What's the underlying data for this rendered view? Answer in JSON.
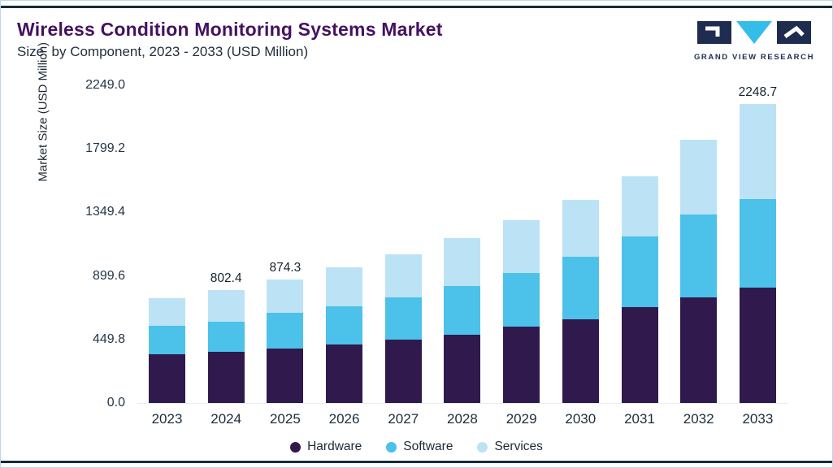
{
  "header": {
    "title": "Wireless Condition Monitoring Systems Market",
    "subtitle": "Size, by Component, 2023 - 2033 (USD Million)",
    "logo_text": "GRAND VIEW RESEARCH"
  },
  "colors": {
    "hardware": "#301a4d",
    "software": "#4cc1e9",
    "services": "#bce3f5",
    "title_purple": "#44125e",
    "rule_navy": "#15293d",
    "logo_navy": "#1e2d4f",
    "logo_cyan": "#35bdea"
  },
  "chart_data": {
    "type": "bar",
    "stacked": true,
    "title": "Wireless Condition Monitoring Systems Market Size, by Component, 2023 - 2033 (USD Million)",
    "xlabel": "",
    "ylabel": "Market Size (USD Million)",
    "ylim": [
      0,
      2249
    ],
    "grid": false,
    "legend_position": "bottom",
    "categories": [
      "2023",
      "2024",
      "2025",
      "2026",
      "2027",
      "2028",
      "2029",
      "2030",
      "2031",
      "2032",
      "2033"
    ],
    "series": [
      {
        "name": "Hardware",
        "color": "#301a4d",
        "values": [
          345,
          362,
          385,
          412,
          447,
          486,
          538,
          595,
          681,
          750,
          870
        ]
      },
      {
        "name": "Software",
        "color": "#4cc1e9",
        "values": [
          204,
          216,
          256,
          275,
          303,
          344,
          383,
          441,
          498,
          583,
          664
        ]
      },
      {
        "name": "Services",
        "color": "#bce3f5",
        "values": [
          191,
          224.4,
          233.3,
          271,
          305,
          336,
          372,
          402,
          425,
          533,
          714.7
        ]
      }
    ],
    "totals": [
      740,
      802.4,
      874.3,
      958,
      1055,
      1166,
      1293,
      1438,
      1604,
      1866,
      2248.7
    ],
    "bar_labels": [
      "",
      "802.4",
      "874.3",
      "",
      "",
      "",
      "",
      "",
      "",
      "",
      "2248.7"
    ],
    "yticks": [
      0,
      449.8,
      899.6,
      1349.4,
      1799.2,
      2249.0
    ],
    "ytick_labels": [
      "0.0",
      "449.8",
      "899.6",
      "1349.4",
      "1799.2",
      "2249.0"
    ]
  }
}
